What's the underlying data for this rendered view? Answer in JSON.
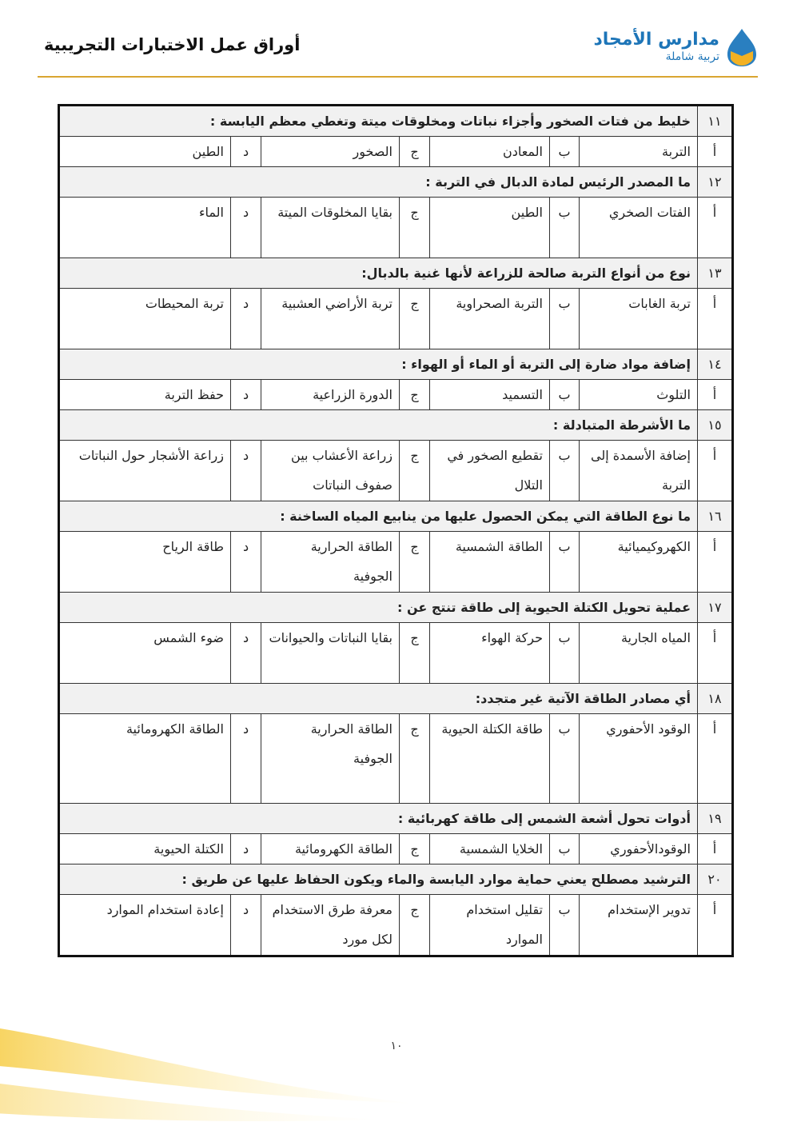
{
  "header": {
    "title": "أوراق عمل الاختبارات التجريبية",
    "logo_name": "مدارس الأمجاد",
    "logo_sub": "تربية شاملة"
  },
  "letters": [
    "أ",
    "ب",
    "ج",
    "د"
  ],
  "questions": [
    {
      "num": "١١",
      "text": "خليط من فتات الصخور وأجزاء نباتات ومخلوقات ميتة وتغطي معظم اليابسة :",
      "options": [
        "التربة",
        "المعادن",
        "الصخور",
        "الطين"
      ]
    },
    {
      "num": "١٢",
      "text": "ما المصدر الرئيس لمادة الدبال في التربة :",
      "options": [
        "الفتات الصخري",
        "الطين",
        "بقايا المخلوقات الميتة",
        "الماء"
      ]
    },
    {
      "num": "١٣",
      "text": "نوع من أنواع التربة صالحة للزراعة لأنها غنية بالدبال:",
      "options": [
        "تربة الغابات",
        "التربة الصحراوية",
        "تربة الأراضي العشبية",
        "تربة المحيطات"
      ]
    },
    {
      "num": "١٤",
      "text": "إضافة مواد ضارة إلى التربة أو الماء أو الهواء :",
      "options": [
        "التلوث",
        "التسميد",
        "الدورة الزراعية",
        "حفظ التربة"
      ]
    },
    {
      "num": "١٥",
      "text": "ما الأشرطة المتبادلة :",
      "options": [
        "إضافة الأسمدة إلى التربة",
        "تقطيع الصخور في التلال",
        "زراعة الأعشاب بين صفوف النباتات",
        "زراعة الأشجار حول النباتات"
      ]
    },
    {
      "num": "١٦",
      "text": "ما نوع الطاقة التي يمكن الحصول عليها من ينابيع المياه الساخنة :",
      "options": [
        "الكهروكيميائية",
        "الطاقة الشمسية",
        "الطاقة الحرارية الجوفية",
        "طاقة الرياح"
      ]
    },
    {
      "num": "١٧",
      "text": "عملية تحويل الكتلة الحيوية إلى طاقة تنتج عن :",
      "options": [
        "المياه الجارية",
        "حركة الهواء",
        "بقايا النباتات والحيوانات",
        "ضوء الشمس"
      ]
    },
    {
      "num": "١٨",
      "text": "أي مصادر الطاقة الآتية غير متجدد:",
      "options": [
        "الوقود الأحفوري",
        "طاقة الكتلة الحيوية",
        "الطاقة الحرارية الجوفية",
        "الطاقة الكهرومائية"
      ]
    },
    {
      "num": "١٩",
      "text": "أدوات تحول أشعة الشمس إلى طاقة كهربائية :",
      "options": [
        "الوقودالأحفوري",
        "الخلايا الشمسية",
        "الطاقة الكهرومائية",
        "الكتلة الحيوية"
      ]
    },
    {
      "num": "٢٠",
      "text": "الترشيد مصطلح يعني حماية موارد اليابسة والماء ويكون الحفاظ عليها عن طريق :",
      "options": [
        "تدوير الإستخدام",
        "تقليل استخدام الموارد",
        "معرفة طرق الاستخدام لكل مورد",
        "إعادة استخدام الموارد"
      ]
    }
  ],
  "footer": {
    "page": "١٠"
  },
  "colors": {
    "rule": "#d9a531",
    "logo": "#1d75b8"
  }
}
